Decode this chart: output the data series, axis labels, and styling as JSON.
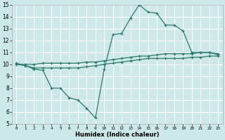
{
  "xlabel": "Humidex (Indice chaleur)",
  "bg_color": "#cce8e8",
  "grid_color": "#ffffff",
  "line_color": "#2d7a6a",
  "x": [
    0,
    1,
    2,
    3,
    4,
    5,
    6,
    7,
    8,
    9,
    10,
    11,
    12,
    13,
    14,
    15,
    16,
    17,
    18,
    19,
    20,
    21,
    22,
    23
  ],
  "line_max": [
    10.1,
    9.9,
    9.6,
    9.5,
    8.0,
    8.0,
    7.2,
    7.0,
    6.3,
    5.5,
    9.6,
    12.5,
    12.6,
    13.9,
    15.0,
    14.4,
    14.3,
    13.3,
    13.3,
    12.8,
    11.0,
    11.0,
    11.0,
    10.8
  ],
  "line_avg": [
    10.0,
    10.0,
    10.0,
    10.1,
    10.1,
    10.1,
    10.1,
    10.1,
    10.2,
    10.2,
    10.3,
    10.4,
    10.5,
    10.6,
    10.7,
    10.7,
    10.8,
    10.9,
    10.9,
    10.9,
    10.9,
    11.0,
    11.0,
    10.9
  ],
  "line_min": [
    10.0,
    9.9,
    9.7,
    9.7,
    9.7,
    9.7,
    9.7,
    9.7,
    9.8,
    9.9,
    10.0,
    10.1,
    10.2,
    10.3,
    10.4,
    10.5,
    10.5,
    10.5,
    10.5,
    10.5,
    10.6,
    10.6,
    10.7,
    10.7
  ],
  "xlim": [
    -0.5,
    23.5
  ],
  "ylim": [
    5,
    15
  ],
  "xtick_labels": [
    "0",
    "1",
    "2",
    "3",
    "4",
    "5",
    "6",
    "7",
    "8",
    "9",
    "10",
    "11",
    "12",
    "13",
    "14",
    "15",
    "16",
    "17",
    "18",
    "19",
    "20",
    "21",
    "22",
    "23"
  ],
  "ytick_labels": [
    "5",
    "6",
    "7",
    "8",
    "9",
    "10",
    "11",
    "12",
    "13",
    "14",
    "15"
  ],
  "ytick_vals": [
    5,
    6,
    7,
    8,
    9,
    10,
    11,
    12,
    13,
    14,
    15
  ]
}
